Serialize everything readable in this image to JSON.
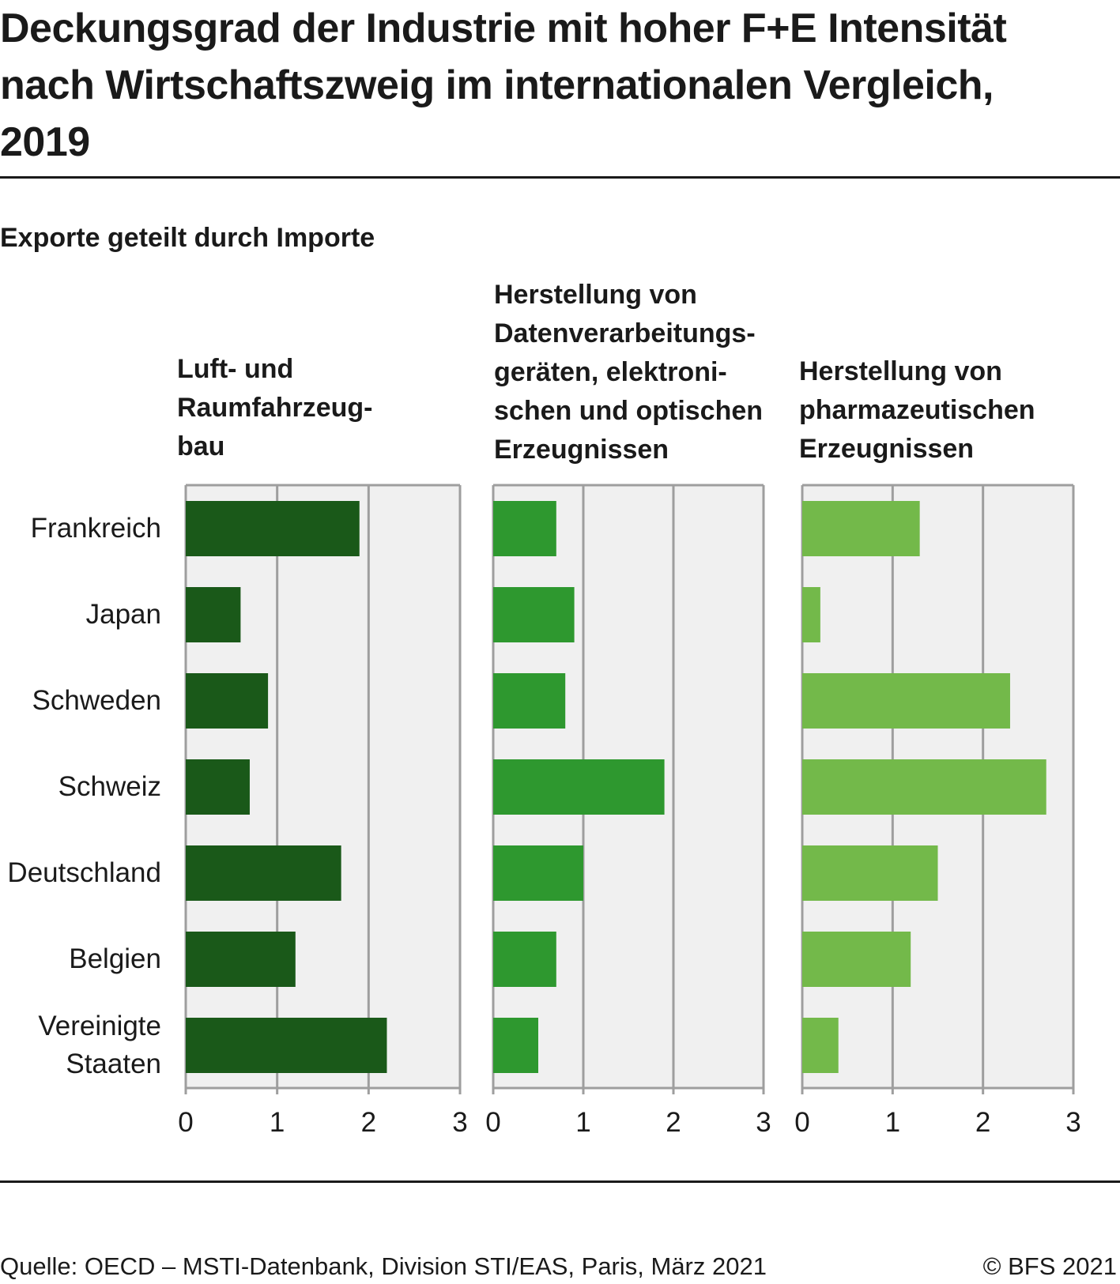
{
  "title": "Deckungsgrad der Industrie mit hoher F+E Intensität nach Wirtschaftszweig im internationalen Vergleich, 2019",
  "title_lines": [
    "Deckungsgrad der Industrie mit hoher F+E Intensität",
    "nach Wirtschaftszweig im internationalen Vergleich,",
    "2019"
  ],
  "subtitle": "Exporte geteilt durch Importe",
  "footer": {
    "source": "Quelle: OECD – MSTI-Datenbank, Division STI/EAS, Paris, März  2021",
    "copyright": "© BFS 2021"
  },
  "chart_data": {
    "type": "bar",
    "orientation": "horizontal",
    "title": "Deckungsgrad der Industrie mit hoher F+E Intensität nach Wirtschaftszweig im internationalen Vergleich, 2019",
    "subtitle": "Exporte geteilt durch Importe",
    "categories": [
      "Frankreich",
      "Japan",
      "Schweden",
      "Schweiz",
      "Deutschland",
      "Belgien",
      "Vereinigte Staaten"
    ],
    "category_label_lines": [
      [
        "Frankreich"
      ],
      [
        "Japan"
      ],
      [
        "Schweden"
      ],
      [
        "Schweiz"
      ],
      [
        "Deutschland"
      ],
      [
        "Belgien"
      ],
      [
        "Vereinigte",
        "Staaten"
      ]
    ],
    "xlim": [
      0,
      3
    ],
    "xticks": [
      "0",
      "1",
      "2",
      "3"
    ],
    "grid": true,
    "series": [
      {
        "name": "Luft- und Raumfahrzeugbau",
        "title_lines": [
          "Luft- und",
          "Raumfahrzeug-",
          "bau"
        ],
        "color": "#1a5919",
        "values": [
          1.9,
          0.6,
          0.9,
          0.7,
          1.7,
          1.2,
          2.2
        ]
      },
      {
        "name": "Herstellung von Datenverarbeitungsgeräten, elektronischen und optischen Erzeugnissen",
        "title_lines": [
          "Herstellung von",
          "Datenverarbeitungs-",
          "geräten, elektroni-",
          "schen und optischen",
          "Erzeugnissen"
        ],
        "color": "#2e982f",
        "values": [
          0.7,
          0.9,
          0.8,
          1.9,
          1.0,
          0.7,
          0.5
        ]
      },
      {
        "name": "Herstellung von pharmazeutischen Erzeugnissen",
        "title_lines": [
          "Herstellung von",
          "pharmazeutischen",
          "Erzeugnissen"
        ],
        "color": "#73b94a",
        "values": [
          1.3,
          0.2,
          2.3,
          2.7,
          1.5,
          1.2,
          0.4
        ]
      }
    ]
  }
}
